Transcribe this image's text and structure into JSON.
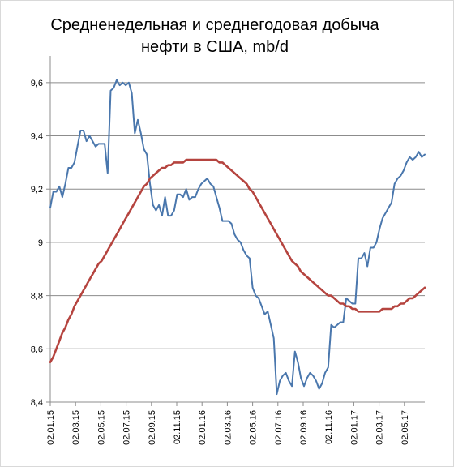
{
  "chart_data": {
    "type": "line",
    "title_lines": [
      "Средненедельная и среднегодовая  добыча",
      "нефти в США, mb/d"
    ],
    "ylim": [
      8.4,
      9.7
    ],
    "yticks": [
      "8,4",
      "8,6",
      "8,8",
      "9",
      "9,2",
      "9,4",
      "9,6"
    ],
    "ytick_values": [
      8.4,
      8.6,
      8.8,
      9.0,
      9.2,
      9.4,
      9.6
    ],
    "xticks": [
      "02.01.15",
      "02.03.15",
      "02.05.15",
      "02.07.15",
      "02.09.15",
      "02.11.15",
      "02.01.16",
      "02.03.16",
      "02.05.16",
      "02.07.16",
      "02.09.16",
      "02.11.16",
      "02.01.17",
      "02.03.17",
      "02.05.17"
    ],
    "grid": "horizontal",
    "legend": "none",
    "series": [
      {
        "color": "#4a77ad",
        "values": [
          9.13,
          9.19,
          9.19,
          9.21,
          9.17,
          9.22,
          9.28,
          9.28,
          9.3,
          9.36,
          9.42,
          9.42,
          9.38,
          9.4,
          9.38,
          9.36,
          9.37,
          9.37,
          9.37,
          9.26,
          9.57,
          9.58,
          9.61,
          9.59,
          9.6,
          9.59,
          9.6,
          9.56,
          9.41,
          9.46,
          9.41,
          9.35,
          9.33,
          9.22,
          9.14,
          9.12,
          9.14,
          9.1,
          9.17,
          9.1,
          9.1,
          9.12,
          9.18,
          9.18,
          9.17,
          9.2,
          9.16,
          9.17,
          9.17,
          9.2,
          9.22,
          9.23,
          9.24,
          9.22,
          9.21,
          9.17,
          9.13,
          9.08,
          9.08,
          9.08,
          9.07,
          9.03,
          9.01,
          9.0,
          8.97,
          8.95,
          8.94,
          8.83,
          8.8,
          8.79,
          8.76,
          8.73,
          8.74,
          8.69,
          8.64,
          8.43,
          8.48,
          8.5,
          8.51,
          8.48,
          8.46,
          8.59,
          8.55,
          8.49,
          8.46,
          8.49,
          8.51,
          8.5,
          8.48,
          8.45,
          8.47,
          8.51,
          8.53,
          8.69,
          8.68,
          8.69,
          8.7,
          8.7,
          8.79,
          8.78,
          8.77,
          8.77,
          8.94,
          8.94,
          8.96,
          8.91,
          8.98,
          8.98,
          9.0,
          9.05,
          9.09,
          9.11,
          9.13,
          9.15,
          9.22,
          9.24,
          9.25,
          9.27,
          9.3,
          9.32,
          9.31,
          9.32,
          9.34,
          9.32,
          9.33
        ]
      },
      {
        "color": "#b5443f",
        "values": [
          8.55,
          8.57,
          8.6,
          8.63,
          8.66,
          8.68,
          8.71,
          8.73,
          8.76,
          8.78,
          8.8,
          8.82,
          8.84,
          8.86,
          8.88,
          8.9,
          8.92,
          8.93,
          8.95,
          8.97,
          8.99,
          9.01,
          9.03,
          9.05,
          9.07,
          9.09,
          9.11,
          9.13,
          9.15,
          9.17,
          9.19,
          9.21,
          9.22,
          9.24,
          9.25,
          9.26,
          9.27,
          9.28,
          9.28,
          9.29,
          9.29,
          9.3,
          9.3,
          9.3,
          9.3,
          9.31,
          9.31,
          9.31,
          9.31,
          9.31,
          9.31,
          9.31,
          9.31,
          9.31,
          9.31,
          9.31,
          9.3,
          9.3,
          9.29,
          9.28,
          9.27,
          9.26,
          9.25,
          9.24,
          9.23,
          9.22,
          9.2,
          9.19,
          9.17,
          9.15,
          9.13,
          9.11,
          9.09,
          9.07,
          9.05,
          9.03,
          9.01,
          8.99,
          8.97,
          8.95,
          8.93,
          8.92,
          8.91,
          8.89,
          8.88,
          8.87,
          8.86,
          8.85,
          8.84,
          8.83,
          8.82,
          8.81,
          8.8,
          8.8,
          8.79,
          8.78,
          8.77,
          8.77,
          8.76,
          8.76,
          8.75,
          8.75,
          8.74,
          8.74,
          8.74,
          8.74,
          8.74,
          8.74,
          8.74,
          8.74,
          8.75,
          8.75,
          8.75,
          8.75,
          8.76,
          8.76,
          8.77,
          8.77,
          8.78,
          8.79,
          8.79,
          8.8,
          8.81,
          8.82,
          8.83
        ]
      }
    ]
  }
}
